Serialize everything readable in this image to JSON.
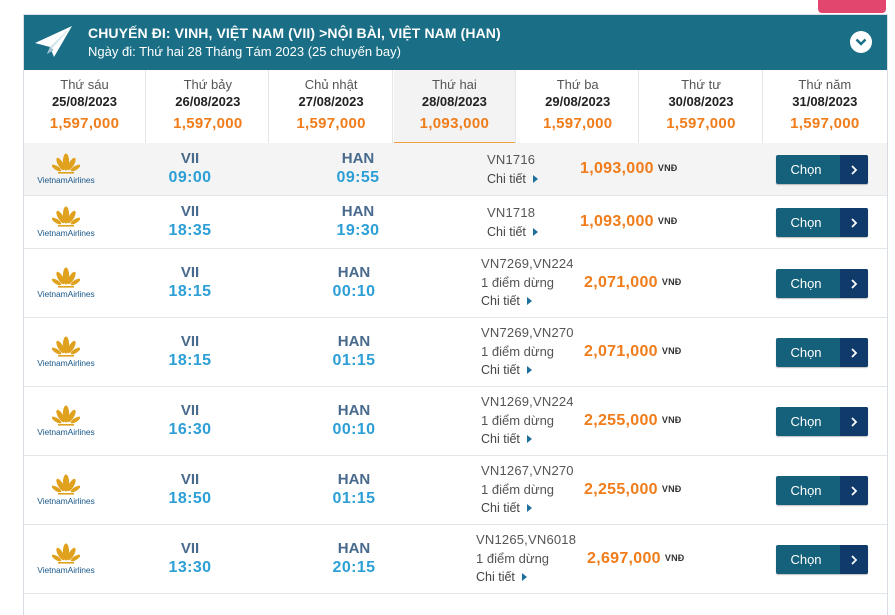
{
  "header": {
    "title": "CHUYẾN ĐI: VINH, VIỆT NAM (VII) >NỘI BÀI, VIỆT NAM (HAN)",
    "subtitle": "Ngày đi: Thứ hai 28 Tháng Tám 2023 (25 chuyến bay)",
    "icon": "paper-plane-icon",
    "toggle_icon": "chevron-down-icon"
  },
  "dates": [
    {
      "dow": "Thứ sáu",
      "date": "25/08/2023",
      "price": "1,597,000"
    },
    {
      "dow": "Thứ bảy",
      "date": "26/08/2023",
      "price": "1,597,000"
    },
    {
      "dow": "Chủ nhật",
      "date": "27/08/2023",
      "price": "1,597,000"
    },
    {
      "dow": "Thứ hai",
      "date": "28/08/2023",
      "price": "1,093,000",
      "active": true
    },
    {
      "dow": "Thứ ba",
      "date": "29/08/2023",
      "price": "1,597,000"
    },
    {
      "dow": "Thứ tư",
      "date": "30/08/2023",
      "price": "1,597,000"
    },
    {
      "dow": "Thứ năm",
      "date": "31/08/2023",
      "price": "1,597,000"
    }
  ],
  "airline": {
    "name": "VietnamAirlines",
    "icon": "lotus-logo-icon"
  },
  "labels": {
    "detail": "Chi tiết",
    "select": "Chọn",
    "currency": "VNĐ"
  },
  "flights": [
    {
      "from": "VII",
      "dep": "09:00",
      "to": "HAN",
      "arr": "09:55",
      "number": "VN1716",
      "stops": "",
      "price": "1,093,000"
    },
    {
      "from": "VII",
      "dep": "18:35",
      "to": "HAN",
      "arr": "19:30",
      "number": "VN1718",
      "stops": "",
      "price": "1,093,000"
    },
    {
      "from": "VII",
      "dep": "18:15",
      "to": "HAN",
      "arr": "00:10",
      "number": "VN7269,VN224",
      "stops": "1 điểm dừng",
      "price": "2,071,000"
    },
    {
      "from": "VII",
      "dep": "18:15",
      "to": "HAN",
      "arr": "01:15",
      "number": "VN7269,VN270",
      "stops": "1 điểm dừng",
      "price": "2,071,000"
    },
    {
      "from": "VII",
      "dep": "16:30",
      "to": "HAN",
      "arr": "00:10",
      "number": "VN1269,VN224",
      "stops": "1 điểm dừng",
      "price": "2,255,000"
    },
    {
      "from": "VII",
      "dep": "18:50",
      "to": "HAN",
      "arr": "01:15",
      "number": "VN1267,VN270",
      "stops": "1 điểm dừng",
      "price": "2,255,000"
    },
    {
      "from": "VII",
      "dep": "13:30",
      "to": "HAN",
      "arr": "20:15",
      "number": "VN1265,VN6018",
      "stops": "1 điểm dừng",
      "price": "2,697,000"
    }
  ],
  "colors": {
    "header": "#1a6f86",
    "price": "#f07c1a",
    "time": "#2c9fd6",
    "button": "#15607a",
    "button_arrow": "#0f3a6a",
    "accent_strip": "#e2456d"
  }
}
